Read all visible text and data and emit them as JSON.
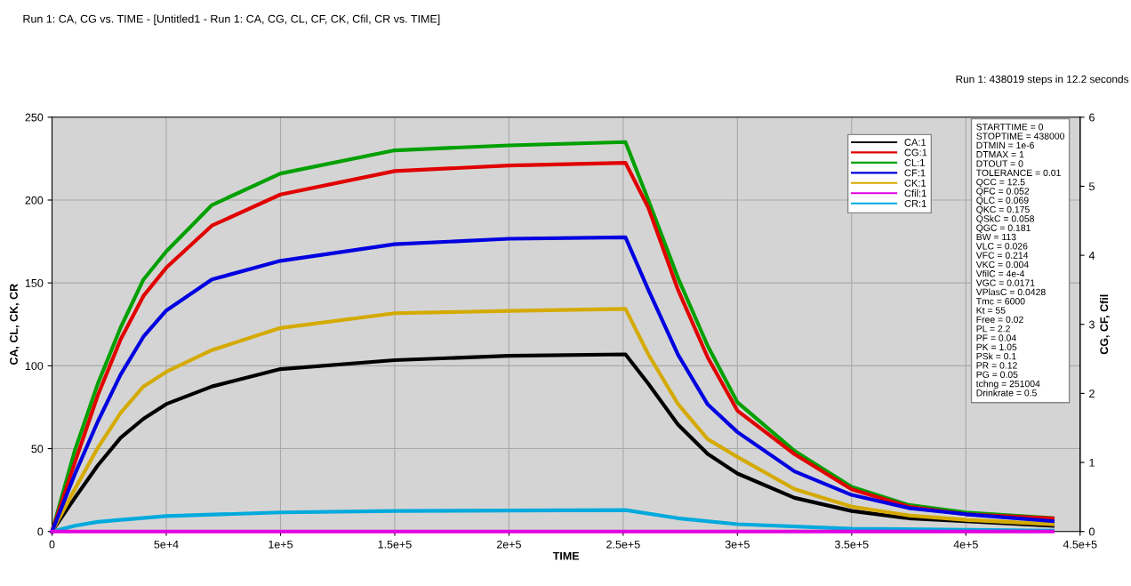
{
  "chart_data": {
    "type": "line",
    "title": "Run 1: CA, CG vs. TIME - [Untitled1 - Run 1: CA, CG, CL, CF, CK, Cfil, CR vs. TIME]",
    "xlabel": "TIME",
    "ylabel": "CA, CL, CK, CR",
    "y2label": "CG, CF, Cfil",
    "x": [
      0,
      10000,
      20000,
      30000,
      40000,
      50000,
      70000,
      100000,
      150000,
      200000,
      251000,
      261000,
      274000,
      287000,
      300000,
      325000,
      350000,
      375000,
      400000,
      438000
    ],
    "series": [
      {
        "name": "CA:1",
        "color": "#000000",
        "values": [
          0,
          20.3,
          39.8,
          56.5,
          68,
          76.9,
          87.5,
          98,
          103.4,
          106,
          106.9,
          89.2,
          64.5,
          46.8,
          35,
          20.3,
          12.4,
          8,
          6.2,
          3.5
        ]
      },
      {
        "name": "CG:1",
        "color": "#e00000",
        "axis": "y2",
        "values": [
          0,
          1.0,
          1.97,
          2.78,
          3.41,
          3.82,
          4.43,
          4.88,
          5.22,
          5.3,
          5.34,
          4.69,
          3.5,
          2.52,
          1.75,
          1.12,
          0.61,
          0.36,
          0.25,
          0.19
        ]
      },
      {
        "name": "CL:1",
        "color": "#00a000",
        "values": [
          0,
          49,
          89,
          123,
          152,
          169,
          197,
          216,
          230,
          233,
          235,
          200,
          153,
          112,
          78,
          48.6,
          27,
          16,
          11.5,
          8
        ]
      },
      {
        "name": "CF:1",
        "color": "#0000e0",
        "axis": "y2",
        "values": [
          0,
          0.83,
          1.59,
          2.27,
          2.82,
          3.2,
          3.65,
          3.92,
          4.16,
          4.24,
          4.26,
          3.5,
          2.56,
          1.84,
          1.44,
          0.87,
          0.53,
          0.34,
          0.25,
          0.15
        ]
      },
      {
        "name": "CK:1",
        "color": "#d4aa00",
        "values": [
          0,
          25.6,
          50.4,
          71.6,
          87.5,
          96.3,
          109.5,
          122.8,
          131.7,
          133.1,
          134.3,
          106.9,
          76.9,
          55.7,
          45,
          25.6,
          15,
          9.7,
          7,
          4.4
        ]
      },
      {
        "name": "Cfil:1",
        "color": "#e000e0",
        "axis": "y2",
        "x": [
          0,
          100000,
          250000,
          350000,
          438000
        ],
        "values": [
          0,
          0,
          0,
          0,
          0
        ]
      },
      {
        "name": "CR:1",
        "color": "#00aadd",
        "x": [
          0,
          10000,
          20000,
          30000,
          50000,
          100000,
          150000,
          251000,
          274000,
          300000,
          350000,
          438000
        ],
        "values": [
          0,
          3.5,
          5.8,
          7,
          9.3,
          11.5,
          12.4,
          12.9,
          8,
          4.4,
          1.7,
          0.5
        ]
      }
    ],
    "xlim": [
      0,
      450000
    ],
    "xticks": [
      0,
      {
        "value": 50000,
        "label": "5e+4"
      },
      {
        "value": 100000,
        "label": "1e+5"
      },
      {
        "value": 150000,
        "label": "1.5e+5"
      },
      {
        "value": 200000,
        "label": "2e+5"
      },
      {
        "value": 250000,
        "label": "2.5e+5"
      },
      {
        "value": 300000,
        "label": "3e+5"
      },
      {
        "value": 350000,
        "label": "3.5e+5"
      },
      {
        "value": 400000,
        "label": "4e+5"
      },
      {
        "value": 450000,
        "label": "4.5e+5"
      }
    ],
    "ylim": [
      0,
      250
    ],
    "yticks": [
      0,
      50,
      100,
      150,
      200,
      250
    ],
    "y2lim": [
      0,
      6
    ],
    "y2ticks": [
      0,
      1,
      2,
      3,
      4,
      5,
      6
    ],
    "grid": true,
    "legend": "top right",
    "marker": "none",
    "line_style": "solid",
    "annotations": [
      "Run 1: 438019 steps in 12.2 seconds",
      "STARTTIME = 0\nSTOPTIME = 438000\nDTMIN = 1e-6\nDTMAX = 1\nDTOUT = 0\nTOLERANCE = 0.01\nQCC = 12.5\nQFC = 0.052\nQLC = 0.069\nQKC = 0.175\nQSkC = 0.058\nQGC = 0.181\nBW = 113\nVLC = 0.026\nVFC = 0.214\nVKC = 0.004\nVfilC = 4e-4\nVGC = 0.0171\nVPlasC = 0.0428\nTmc = 6000\nKt = 55\nFree = 0.02\nPL = 2.2\nPF = 0.04\nPK = 1.05\nPSk = 0.1\nPR = 0.12\nPG = 0.05\ntchng = 251004\nDrinkrate = 0.5"
    ]
  }
}
